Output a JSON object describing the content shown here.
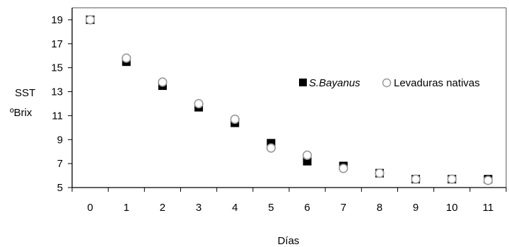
{
  "chart_data": {
    "type": "scatter",
    "x": [
      0,
      1,
      2,
      3,
      4,
      5,
      6,
      7,
      8,
      9,
      10,
      11
    ],
    "series": [
      {
        "name": "S.Bayanus",
        "marker": "square",
        "color": "#000000",
        "values": [
          19.0,
          15.5,
          13.5,
          11.7,
          10.4,
          8.7,
          7.2,
          6.8,
          6.2,
          5.7,
          5.7,
          5.7
        ]
      },
      {
        "name": "Levaduras nativas",
        "marker": "circle",
        "color": "#ffffff",
        "stroke": "#999999",
        "values": [
          19.0,
          15.8,
          13.8,
          12.0,
          10.7,
          8.3,
          7.7,
          6.6,
          6.2,
          5.7,
          5.7,
          5.6
        ]
      }
    ],
    "xlabel": "Días",
    "ylabel_line1": "SST",
    "ylabel_line2": "ºBrix",
    "xlim": [
      -0.5,
      11.5
    ],
    "ylim": [
      5,
      20
    ],
    "yticks": [
      5,
      7,
      9,
      11,
      13,
      15,
      17,
      19
    ],
    "xticks": [
      0,
      1,
      2,
      3,
      4,
      5,
      6,
      7,
      8,
      9,
      10,
      11
    ],
    "grid": false,
    "legend_position": "right-middle"
  }
}
